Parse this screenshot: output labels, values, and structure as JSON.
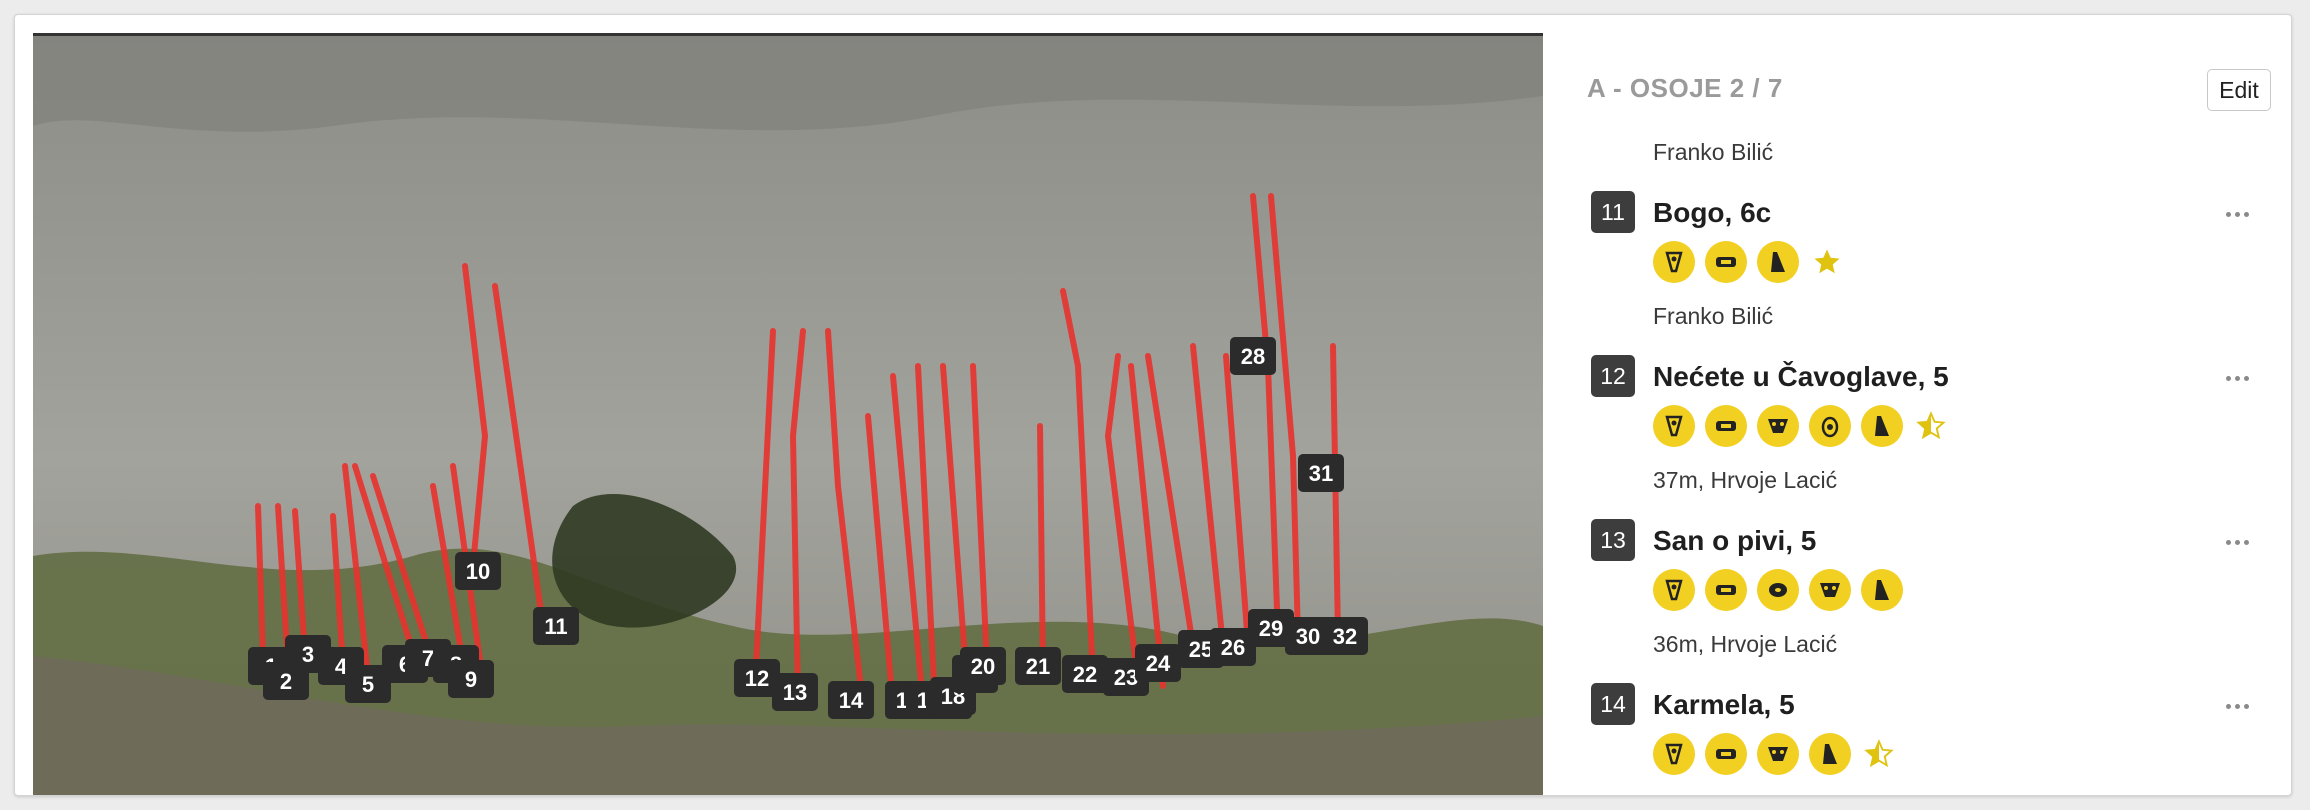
{
  "sector": {
    "title": "A - OSOJE 2 / 7",
    "edit_label": "Edit"
  },
  "colors": {
    "accent_yellow": "#f2d022",
    "badge_dark": "#3d3d3d",
    "route_line": "#e8322e"
  },
  "top_meta": "Franko Bilić",
  "routes": [
    {
      "number": "11",
      "name": "Bogo, 6c",
      "icons": [
        "slab-icon",
        "jug-icon",
        "pillar-icon"
      ],
      "rating": "full-star-icon",
      "meta": "Franko Bilić"
    },
    {
      "number": "12",
      "name": "Nećete u Čavoglave, 5",
      "icons": [
        "slab-icon",
        "jug-icon",
        "face-icon",
        "pocket-icon",
        "pillar-icon"
      ],
      "rating": "half-star-icon",
      "meta": "37m, Hrvoje Lacić"
    },
    {
      "number": "13",
      "name": "San o pivi, 5",
      "icons": [
        "slab-icon",
        "jug-icon",
        "hole-icon",
        "face-icon",
        "pillar-icon"
      ],
      "rating": null,
      "meta": "36m, Hrvoje Lacić"
    },
    {
      "number": "14",
      "name": "Karmela, 5",
      "icons": [
        "slab-icon",
        "jug-icon",
        "face-icon",
        "pillar-icon"
      ],
      "rating": "half-star-icon",
      "meta": null
    }
  ],
  "photo_badges": [
    "1",
    "2",
    "3",
    "4",
    "5",
    "6",
    "7",
    "8",
    "9",
    "10",
    "11",
    "12",
    "13",
    "14",
    "15",
    "16",
    "17",
    "18",
    "19",
    "20",
    "21",
    "22",
    "23",
    "24",
    "25",
    "26",
    "28",
    "29",
    "30",
    "31",
    "32"
  ]
}
